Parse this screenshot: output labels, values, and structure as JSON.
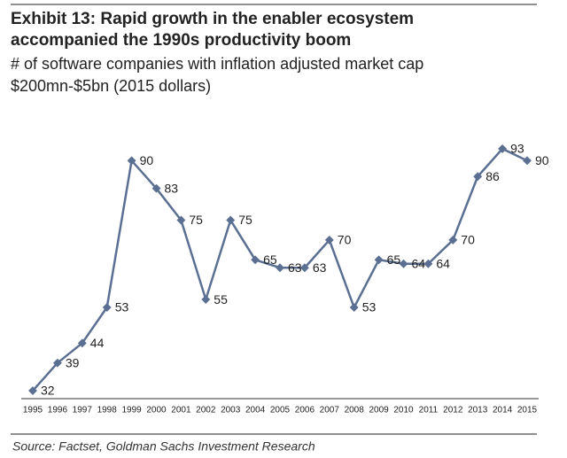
{
  "chart_data": {
    "type": "line",
    "title": [
      "Exhibit 13: Rapid growth in the enabler ecosystem",
      "accompanied the 1990s productivity boom"
    ],
    "subtitle": [
      "# of software companies with inflation adjusted market cap",
      "$200mn-$5bn (2015 dollars)"
    ],
    "categories": [
      "1995",
      "1996",
      "1997",
      "1998",
      "1999",
      "2000",
      "2001",
      "2002",
      "2003",
      "2004",
      "2005",
      "2006",
      "2007",
      "2008",
      "2009",
      "2010",
      "2011",
      "2012",
      "2013",
      "2014",
      "2015"
    ],
    "values": [
      32,
      39,
      44,
      53,
      90,
      83,
      75,
      55,
      75,
      65,
      63,
      63,
      70,
      53,
      65,
      64,
      64,
      70,
      86,
      93,
      90
    ],
    "color": "#5b6f93",
    "ylim": [
      30,
      97
    ],
    "source": "Source: Factset, Goldman Sachs Investment Research"
  }
}
